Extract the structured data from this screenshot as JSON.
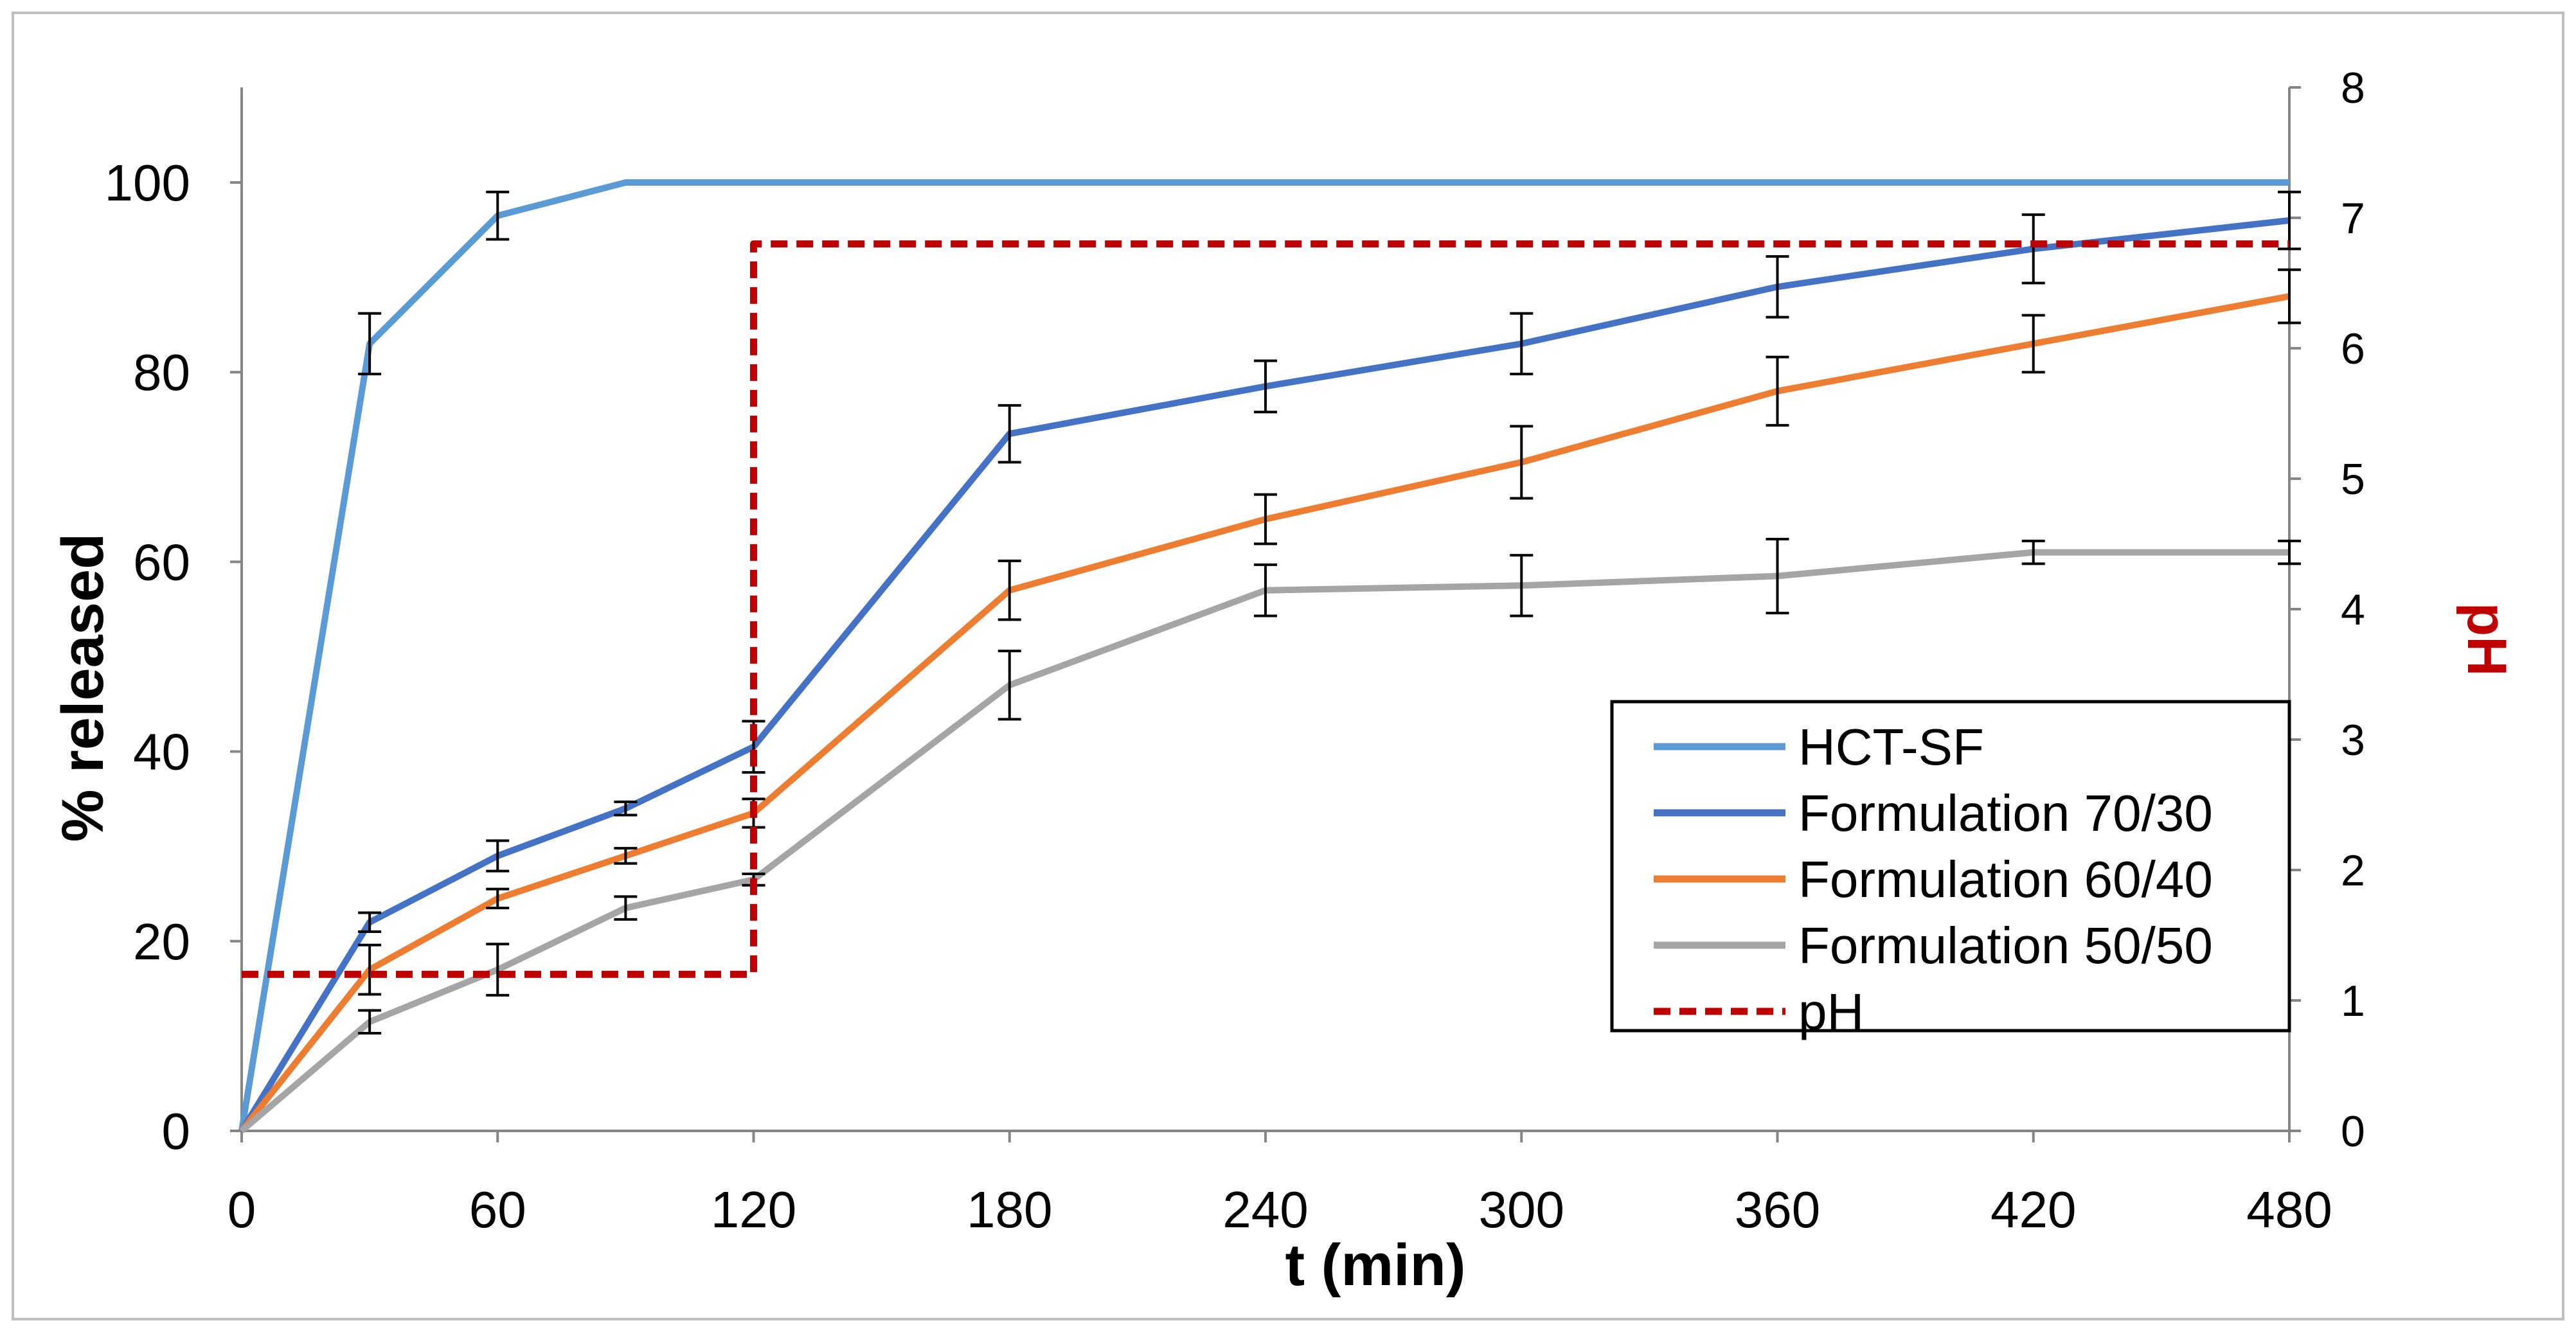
{
  "chart_data": {
    "type": "line",
    "x": [
      0,
      30,
      60,
      90,
      120,
      180,
      240,
      300,
      360,
      420,
      480
    ],
    "xlabel": "t (min)",
    "ylabel": "% released",
    "y2label": "pH",
    "xlim": [
      0,
      480
    ],
    "ylim": [
      0,
      110
    ],
    "y2lim": [
      0,
      8
    ],
    "xticks": [
      0,
      60,
      120,
      180,
      240,
      300,
      360,
      420,
      480
    ],
    "yticks": [
      0,
      20,
      40,
      60,
      80,
      100
    ],
    "y2ticks": [
      0,
      1,
      2,
      3,
      4,
      5,
      6,
      7,
      8
    ],
    "grid": false,
    "legend_position": "center-right",
    "series": [
      {
        "name": "HCT-SF",
        "color": "#5B9BD5",
        "axis": "left",
        "x": [
          0,
          30,
          60,
          90,
          120,
          180,
          240,
          300,
          360,
          420,
          480
        ],
        "values": [
          0,
          83,
          96.5,
          100,
          100,
          100,
          100,
          100,
          100,
          100,
          100
        ],
        "errors": [
          0,
          3.2,
          2.5,
          0,
          0,
          0,
          0,
          0,
          0,
          0,
          0
        ]
      },
      {
        "name": "Formulation 70/30",
        "color": "#4472C4",
        "axis": "left",
        "x": [
          0,
          30,
          60,
          90,
          120,
          180,
          240,
          300,
          360,
          420,
          480
        ],
        "values": [
          0,
          22,
          29,
          34,
          40.5,
          73.5,
          78.5,
          83,
          89,
          93,
          96
        ],
        "errors": [
          0,
          1,
          1.6,
          0.7,
          2.7,
          3,
          2.7,
          3.2,
          3.2,
          3.6,
          3
        ]
      },
      {
        "name": "Formulation 60/40",
        "color": "#ED7D31",
        "axis": "left",
        "x": [
          0,
          30,
          60,
          90,
          120,
          180,
          240,
          300,
          360,
          420,
          480
        ],
        "values": [
          0,
          17,
          24.5,
          29,
          33.5,
          57,
          64.5,
          70.5,
          78,
          83,
          88
        ],
        "errors": [
          0,
          2.6,
          1,
          0.8,
          1.5,
          3.1,
          2.6,
          3.8,
          3.6,
          3,
          2.8
        ]
      },
      {
        "name": "Formulation 50/50",
        "color": "#A5A5A5",
        "axis": "left",
        "x": [
          0,
          30,
          60,
          90,
          120,
          180,
          240,
          300,
          360,
          420,
          480
        ],
        "values": [
          0,
          11.5,
          17,
          23.5,
          26.5,
          47,
          57,
          57.5,
          58.5,
          61,
          61
        ],
        "errors": [
          0,
          1.2,
          2.7,
          1.2,
          0.6,
          3.6,
          2.7,
          3.2,
          3.9,
          1.2,
          1.2
        ]
      },
      {
        "name": "pH",
        "color": "#C00000",
        "axis": "right",
        "dashed": true,
        "x": [
          0,
          120,
          120,
          480
        ],
        "values": [
          1.2,
          1.2,
          6.8,
          6.8
        ]
      }
    ]
  }
}
